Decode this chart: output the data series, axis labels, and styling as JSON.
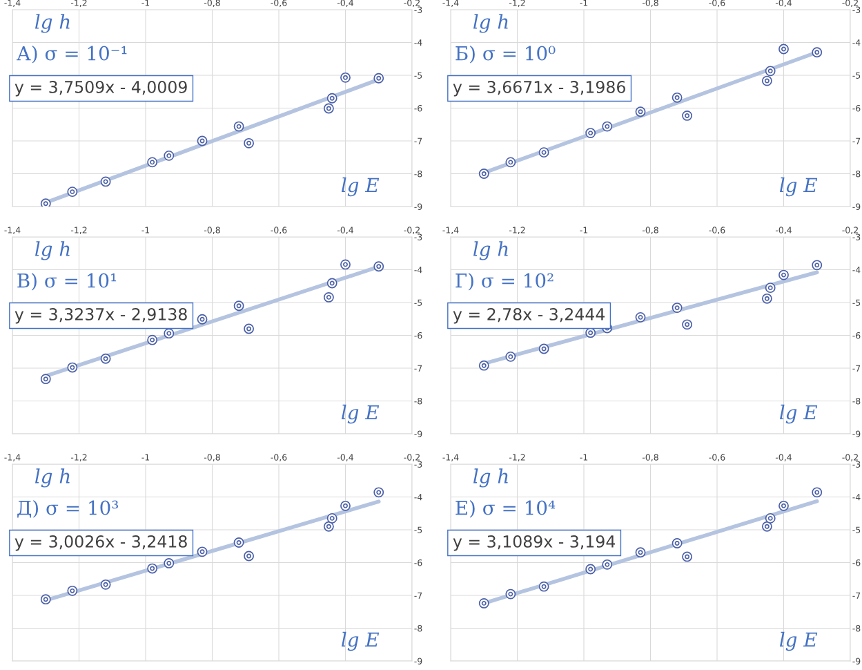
{
  "chart_data": [
    {
      "type": "scatter",
      "title": "А) σ = 10⁻¹",
      "xlabel": "lg E",
      "ylabel": "lg h",
      "annotations": [
        "y = 3,7509x - 4,0009"
      ],
      "x": [
        -1.3,
        -1.22,
        -1.12,
        -0.98,
        -0.93,
        -0.83,
        -0.72,
        -0.69,
        -0.45,
        -0.44,
        -0.4,
        -0.3
      ],
      "series": [
        {
          "color": "#4a5fa8",
          "marker": "circle",
          "values": [
            -8.91,
            -8.55,
            -8.24,
            -7.65,
            -7.45,
            -7.0,
            -6.56,
            -7.07,
            -6.01,
            -5.7,
            -5.07,
            -5.09
          ]
        },
        {
          "type": "line",
          "color": "#b4c4e0",
          "values": [
            -8.88,
            null,
            null,
            null,
            null,
            null,
            null,
            null,
            null,
            null,
            null,
            -5.13
          ]
        }
      ],
      "grid": true,
      "xlim": [
        -1.4,
        -0.2
      ],
      "ylim": [
        -9,
        -3
      ],
      "xticks": [
        {
          "value": -1.4,
          "label": "-1,4"
        },
        {
          "value": -1.2,
          "label": "-1,2"
        },
        {
          "value": -1,
          "label": "-1"
        },
        {
          "value": -0.8,
          "label": "-0,8"
        },
        {
          "value": -0.6,
          "label": "-0,6"
        },
        {
          "value": -0.4,
          "label": "-0,4"
        },
        {
          "value": -0.2,
          "label": "-0,2"
        }
      ],
      "yticks": [
        -9,
        -8,
        -7,
        -6,
        -5,
        -4,
        -3
      ]
    },
    {
      "type": "scatter",
      "title": "Б) σ = 10⁰",
      "xlabel": "lg E",
      "ylabel": "lg h",
      "annotations": [
        "y = 3,6671x - 3,1986"
      ],
      "x": [
        -1.3,
        -1.22,
        -1.12,
        -0.98,
        -0.93,
        -0.83,
        -0.72,
        -0.69,
        -0.45,
        -0.44,
        -0.4,
        -0.3
      ],
      "series": [
        {
          "color": "#4a5fa8",
          "marker": "circle",
          "values": [
            -8.0,
            -7.65,
            -7.35,
            -6.76,
            -6.56,
            -6.11,
            -5.68,
            -6.23,
            -5.17,
            -4.87,
            -4.2,
            -4.3
          ]
        },
        {
          "type": "line",
          "color": "#b4c4e0",
          "values": [
            -7.97,
            null,
            null,
            null,
            null,
            null,
            null,
            null,
            null,
            null,
            null,
            -4.3
          ]
        }
      ],
      "grid": true,
      "xlim": [
        -1.4,
        -0.2
      ],
      "ylim": [
        -9,
        -3
      ],
      "xticks": [
        {
          "value": -1.4,
          "label": "-1,4"
        },
        {
          "value": -1.2,
          "label": "-1,2"
        },
        {
          "value": -1,
          "label": "-1"
        },
        {
          "value": -0.8,
          "label": "-0,8"
        },
        {
          "value": -0.6,
          "label": "-0,6"
        },
        {
          "value": -0.4,
          "label": "-0,4"
        },
        {
          "value": -0.2,
          "label": "-0,2"
        }
      ],
      "yticks": [
        -9,
        -8,
        -7,
        -6,
        -5,
        -4,
        -3
      ]
    },
    {
      "type": "scatter",
      "title": "В) σ = 10¹",
      "xlabel": "lg E",
      "ylabel": "lg h",
      "annotations": [
        "y = 3,3237x - 2,9138"
      ],
      "x": [
        -1.3,
        -1.22,
        -1.12,
        -0.98,
        -0.93,
        -0.83,
        -0.72,
        -0.69,
        -0.45,
        -0.44,
        -0.4,
        -0.3
      ],
      "series": [
        {
          "color": "#4a5fa8",
          "marker": "circle",
          "values": [
            -7.33,
            -6.98,
            -6.71,
            -6.14,
            -5.94,
            -5.51,
            -5.1,
            -5.8,
            -4.84,
            -4.41,
            -3.84,
            -3.9
          ]
        },
        {
          "type": "line",
          "color": "#b4c4e0",
          "values": [
            -7.24,
            null,
            null,
            null,
            null,
            null,
            null,
            null,
            null,
            null,
            null,
            -3.91
          ]
        }
      ],
      "grid": true,
      "xlim": [
        -1.4,
        -0.2
      ],
      "ylim": [
        -9,
        -3
      ],
      "xticks": [
        {
          "value": -1.4,
          "label": "-1,4"
        },
        {
          "value": -1.2,
          "label": "-1,2"
        },
        {
          "value": -1,
          "label": "-1"
        },
        {
          "value": -0.8,
          "label": "-0,8"
        },
        {
          "value": -0.6,
          "label": "-0,6"
        },
        {
          "value": -0.4,
          "label": "-0,4"
        },
        {
          "value": -0.2,
          "label": "-0,2"
        }
      ],
      "yticks": [
        -9,
        -8,
        -7,
        -6,
        -5,
        -4,
        -3
      ]
    },
    {
      "type": "scatter",
      "title": "Г) σ = 10²",
      "xlabel": "lg E",
      "ylabel": "lg h",
      "annotations": [
        "y = 2,78x - 3,2444"
      ],
      "x": [
        -1.3,
        -1.22,
        -1.12,
        -0.98,
        -0.93,
        -0.83,
        -0.72,
        -0.69,
        -0.45,
        -0.44,
        -0.4,
        -0.3
      ],
      "series": [
        {
          "color": "#4a5fa8",
          "marker": "circle",
          "values": [
            -6.92,
            -6.65,
            -6.41,
            -5.92,
            -5.78,
            -5.45,
            -5.16,
            -5.67,
            -4.88,
            -4.55,
            -4.16,
            -3.86
          ]
        },
        {
          "type": "line",
          "color": "#b4c4e0",
          "values": [
            -6.86,
            null,
            null,
            null,
            null,
            null,
            null,
            null,
            null,
            null,
            null,
            -4.08
          ]
        }
      ],
      "grid": true,
      "xlim": [
        -1.4,
        -0.2
      ],
      "ylim": [
        -9,
        -3
      ],
      "xticks": [
        {
          "value": -1.4,
          "label": "-1,4"
        },
        {
          "value": -1.2,
          "label": "-1,2"
        },
        {
          "value": -1,
          "label": "-1"
        },
        {
          "value": -0.8,
          "label": "-0,8"
        },
        {
          "value": -0.6,
          "label": "-0,6"
        },
        {
          "value": -0.4,
          "label": "-0,4"
        },
        {
          "value": -0.2,
          "label": "-0,2"
        }
      ],
      "yticks": [
        -9,
        -8,
        -7,
        -6,
        -5,
        -4,
        -3
      ]
    },
    {
      "type": "scatter",
      "title": "Д) σ = 10³",
      "xlabel": "lg E",
      "ylabel": "lg h",
      "annotations": [
        "y = 3,0026x - 3,2418"
      ],
      "x": [
        -1.3,
        -1.22,
        -1.12,
        -0.98,
        -0.93,
        -0.83,
        -0.72,
        -0.69,
        -0.45,
        -0.44,
        -0.4,
        -0.3
      ],
      "series": [
        {
          "color": "#4a5fa8",
          "marker": "circle",
          "values": [
            -7.12,
            -6.86,
            -6.67,
            -6.18,
            -6.02,
            -5.67,
            -5.39,
            -5.8,
            -4.9,
            -4.65,
            -4.27,
            -3.86
          ]
        },
        {
          "type": "line",
          "color": "#b4c4e0",
          "values": [
            -7.15,
            null,
            null,
            null,
            null,
            null,
            null,
            null,
            null,
            null,
            null,
            -4.14
          ]
        }
      ],
      "grid": true,
      "xlim": [
        -1.4,
        -0.2
      ],
      "ylim": [
        -9,
        -3
      ],
      "xticks": [
        {
          "value": -1.4,
          "label": "-1,4"
        },
        {
          "value": -1.2,
          "label": "-1,2"
        },
        {
          "value": -1,
          "label": "-1"
        },
        {
          "value": -0.8,
          "label": "-0,8"
        },
        {
          "value": -0.6,
          "label": "-0,6"
        },
        {
          "value": -0.4,
          "label": "-0,4"
        },
        {
          "value": -0.2,
          "label": "-0,2"
        }
      ],
      "yticks": [
        -9,
        -8,
        -7,
        -6,
        -5,
        -4,
        -3
      ]
    },
    {
      "type": "scatter",
      "title": "Е) σ = 10⁴",
      "xlabel": "lg E",
      "ylabel": "lg h",
      "annotations": [
        "y = 3,1089x - 3,194"
      ],
      "x": [
        -1.3,
        -1.22,
        -1.12,
        -0.98,
        -0.93,
        -0.83,
        -0.72,
        -0.69,
        -0.45,
        -0.44,
        -0.4,
        -0.3
      ],
      "series": [
        {
          "color": "#4a5fa8",
          "marker": "circle",
          "values": [
            -7.24,
            -6.96,
            -6.73,
            -6.2,
            -6.06,
            -5.69,
            -5.41,
            -5.82,
            -4.9,
            -4.65,
            -4.27,
            -3.86
          ]
        },
        {
          "type": "line",
          "color": "#b4c4e0",
          "values": [
            -7.24,
            null,
            null,
            null,
            null,
            null,
            null,
            null,
            null,
            null,
            null,
            -4.13
          ]
        }
      ],
      "grid": true,
      "xlim": [
        -1.4,
        -0.2
      ],
      "ylim": [
        -9,
        -3
      ],
      "xticks": [
        {
          "value": -1.4,
          "label": "-1,4"
        },
        {
          "value": -1.2,
          "label": "-1,2"
        },
        {
          "value": -1,
          "label": "-1"
        },
        {
          "value": -0.8,
          "label": "-0,8"
        },
        {
          "value": -0.6,
          "label": "-0,6"
        },
        {
          "value": -0.4,
          "label": "-0,4"
        },
        {
          "value": -0.2,
          "label": "-0,2"
        }
      ],
      "yticks": [
        -9,
        -8,
        -7,
        -6,
        -5,
        -4,
        -3
      ]
    }
  ]
}
